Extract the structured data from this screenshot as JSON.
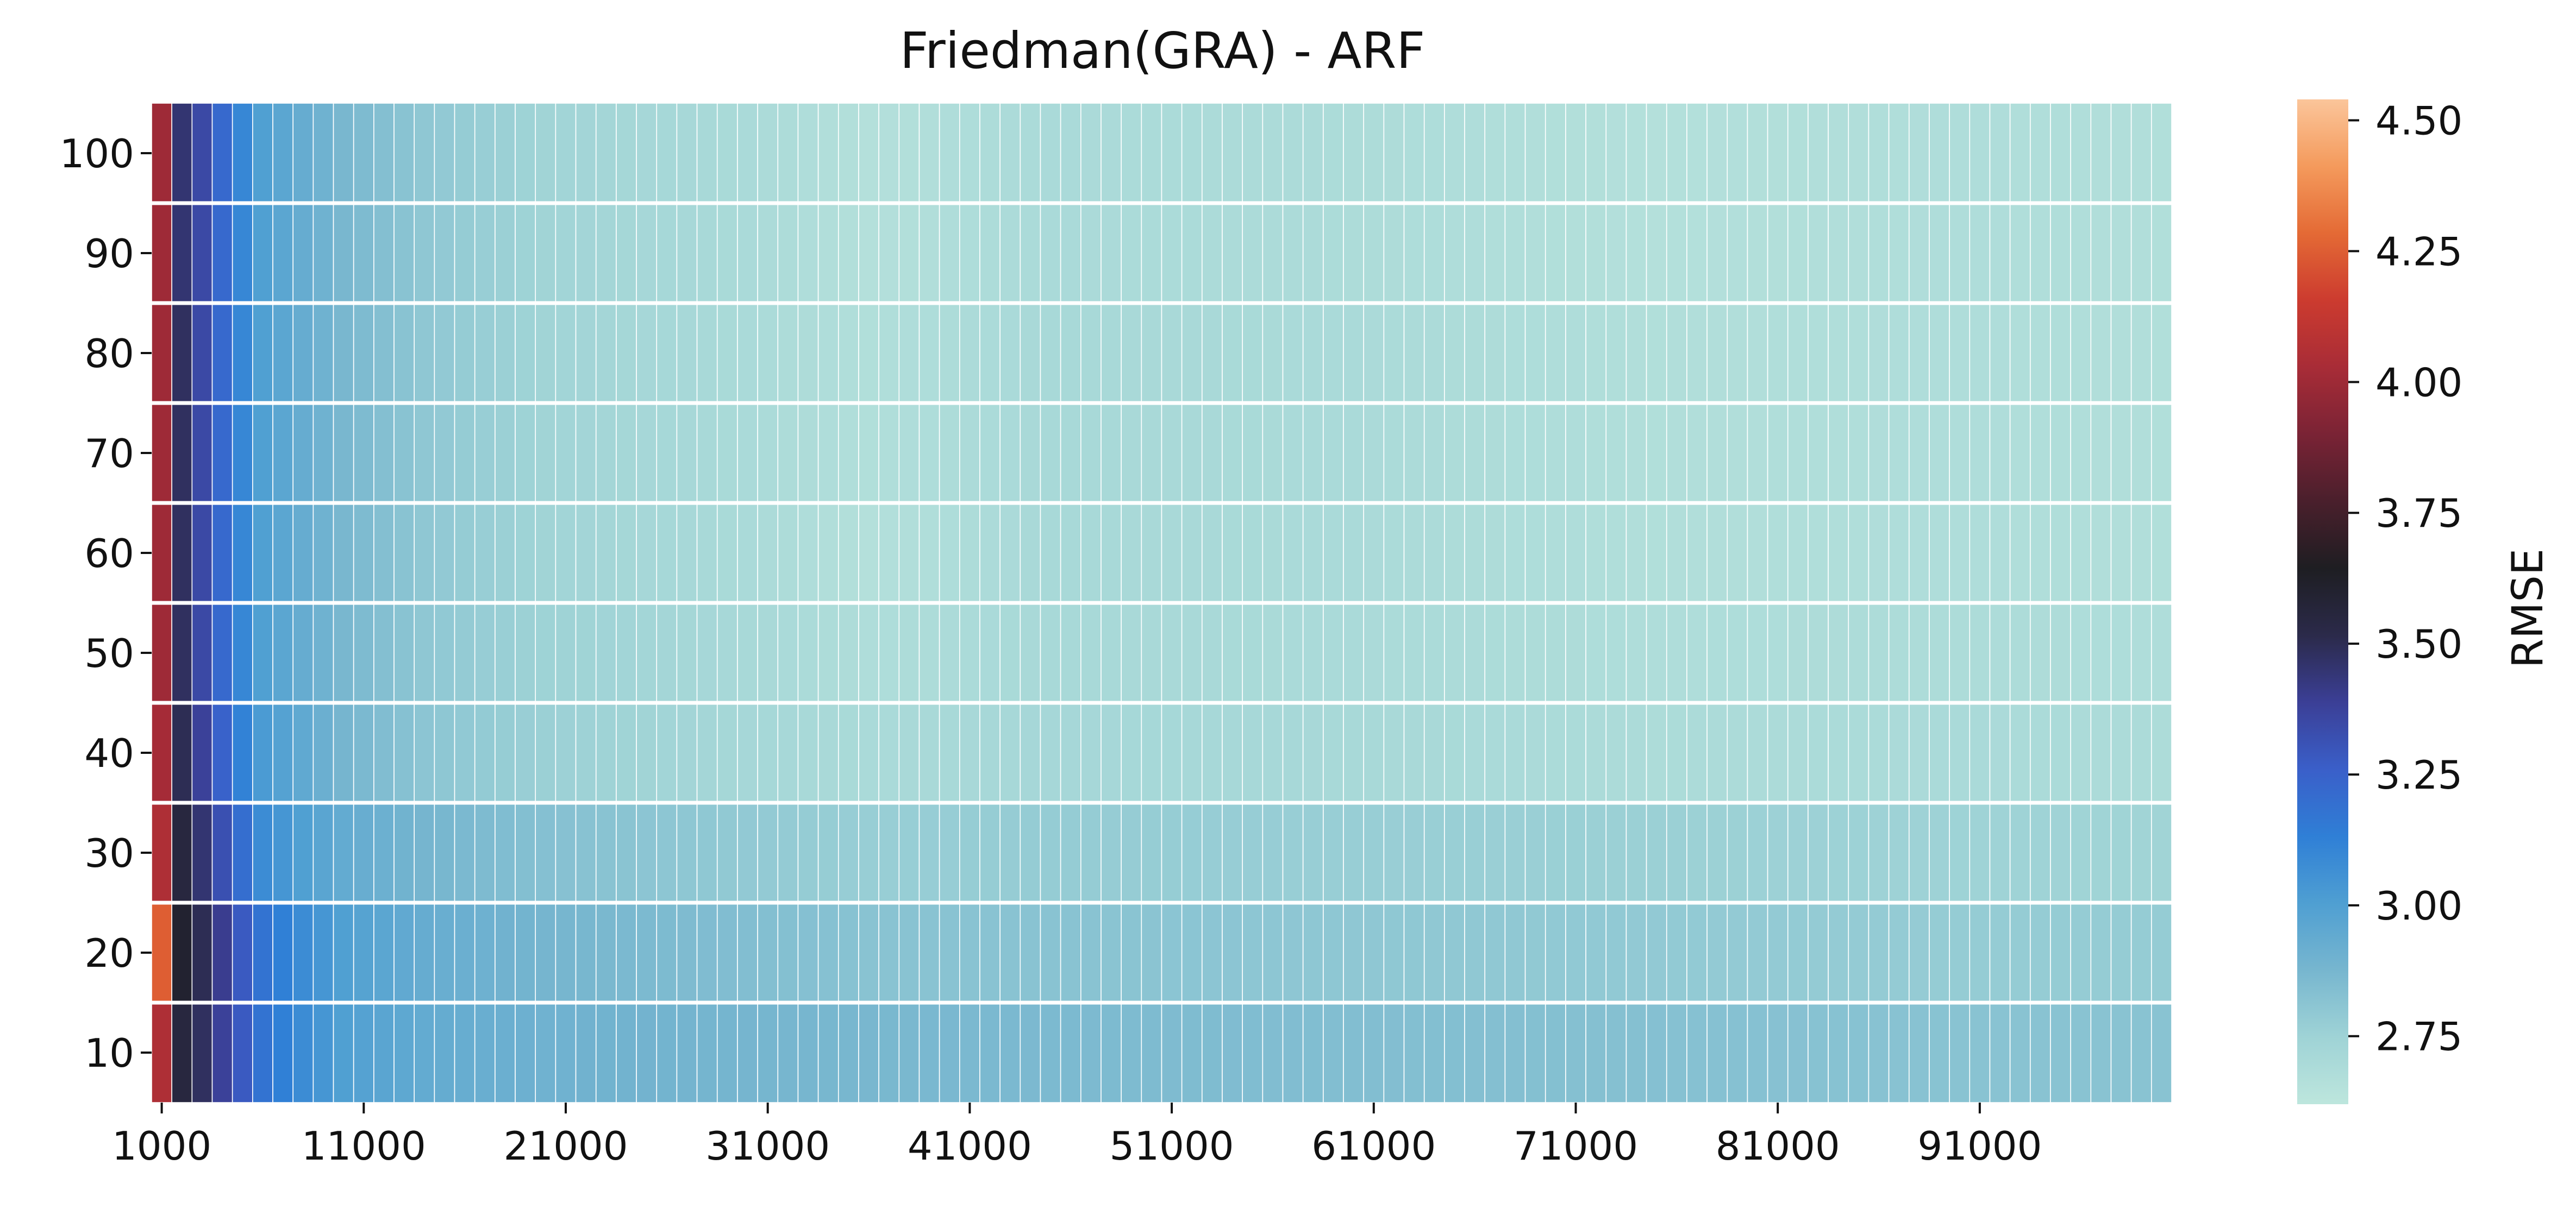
{
  "chart_data": {
    "type": "heatmap",
    "title": "Friedman(GRA) - ARF",
    "xlabel": "",
    "ylabel": "",
    "colorbar_label": "RMSE",
    "x": {
      "start": 1000,
      "step": 1000,
      "count": 100,
      "tick_labels": [
        "1000",
        "11000",
        "21000",
        "31000",
        "41000",
        "51000",
        "61000",
        "71000",
        "81000",
        "91000"
      ]
    },
    "y": {
      "rows_top_to_bottom": [
        100,
        90,
        80,
        70,
        60,
        50,
        40,
        30,
        20,
        10
      ],
      "tick_labels": [
        "100",
        "90",
        "80",
        "70",
        "60",
        "50",
        "40",
        "30",
        "20",
        "10"
      ]
    },
    "colorbar": {
      "vmin": 2.62,
      "vmax": 4.54,
      "ticks": [
        2.75,
        3.0,
        3.25,
        3.5,
        3.75,
        4.0,
        4.25,
        4.5
      ],
      "tick_labels": [
        "2.75",
        "3.00",
        "3.25",
        "3.50",
        "3.75",
        "4.00",
        "4.25",
        "4.50"
      ],
      "colormap": "icefire",
      "colors": [
        "#bde6dd",
        "#9fd3d6",
        "#77b6cf",
        "#4f9fd2",
        "#2f7fd6",
        "#3a5fc9",
        "#3b3f96",
        "#2b2a4a",
        "#1e1e22",
        "#4a1f2c",
        "#7a2335",
        "#a82c37",
        "#cc3b2f",
        "#e46a35",
        "#f49a5c",
        "#fbc59a"
      ]
    },
    "row_profiles_rmse_at_x": {
      "x_sample": [
        1000,
        2000,
        3000,
        4000,
        5000,
        6000,
        8000,
        10000,
        14000,
        20000,
        30000,
        36000,
        45000,
        60000,
        75000,
        90000,
        100000
      ],
      "100": [
        4.0,
        3.45,
        3.35,
        3.22,
        3.1,
        3.0,
        2.93,
        2.87,
        2.8,
        2.74,
        2.7,
        2.66,
        2.7,
        2.69,
        2.66,
        2.68,
        2.67
      ],
      "90": [
        4.0,
        3.45,
        3.35,
        3.22,
        3.1,
        3.0,
        2.93,
        2.87,
        2.8,
        2.74,
        2.7,
        2.66,
        2.7,
        2.69,
        2.66,
        2.68,
        2.67
      ],
      "80": [
        4.0,
        3.48,
        3.35,
        3.22,
        3.1,
        3.0,
        2.93,
        2.87,
        2.8,
        2.74,
        2.7,
        2.67,
        2.71,
        2.7,
        2.67,
        2.68,
        2.67
      ],
      "70": [
        4.0,
        3.48,
        3.35,
        3.22,
        3.1,
        3.0,
        2.93,
        2.87,
        2.8,
        2.74,
        2.7,
        2.67,
        2.71,
        2.7,
        2.67,
        2.68,
        2.67
      ],
      "60": [
        4.0,
        3.48,
        3.35,
        3.22,
        3.1,
        3.0,
        2.93,
        2.87,
        2.8,
        2.74,
        2.7,
        2.66,
        2.71,
        2.7,
        2.67,
        2.68,
        2.67
      ],
      "50": [
        4.0,
        3.48,
        3.35,
        3.22,
        3.1,
        3.0,
        2.93,
        2.87,
        2.8,
        2.75,
        2.71,
        2.68,
        2.71,
        2.7,
        2.68,
        2.69,
        2.68
      ],
      "40": [
        4.02,
        3.5,
        3.38,
        3.25,
        3.12,
        3.02,
        2.95,
        2.88,
        2.81,
        2.76,
        2.72,
        2.7,
        2.72,
        2.71,
        2.69,
        2.7,
        2.69
      ],
      "30": [
        4.05,
        3.55,
        3.45,
        3.32,
        3.2,
        3.08,
        3.0,
        2.94,
        2.88,
        2.83,
        2.79,
        2.77,
        2.78,
        2.77,
        2.76,
        2.75,
        2.74
      ],
      "20": [
        4.25,
        3.6,
        3.5,
        3.4,
        3.28,
        3.18,
        3.08,
        3.0,
        2.93,
        2.88,
        2.84,
        2.82,
        2.82,
        2.8,
        2.79,
        2.78,
        2.78
      ],
      "10": [
        4.05,
        3.55,
        3.48,
        3.38,
        3.28,
        3.18,
        3.08,
        3.0,
        2.94,
        2.9,
        2.88,
        2.87,
        2.86,
        2.84,
        2.83,
        2.82,
        2.82
      ]
    }
  }
}
